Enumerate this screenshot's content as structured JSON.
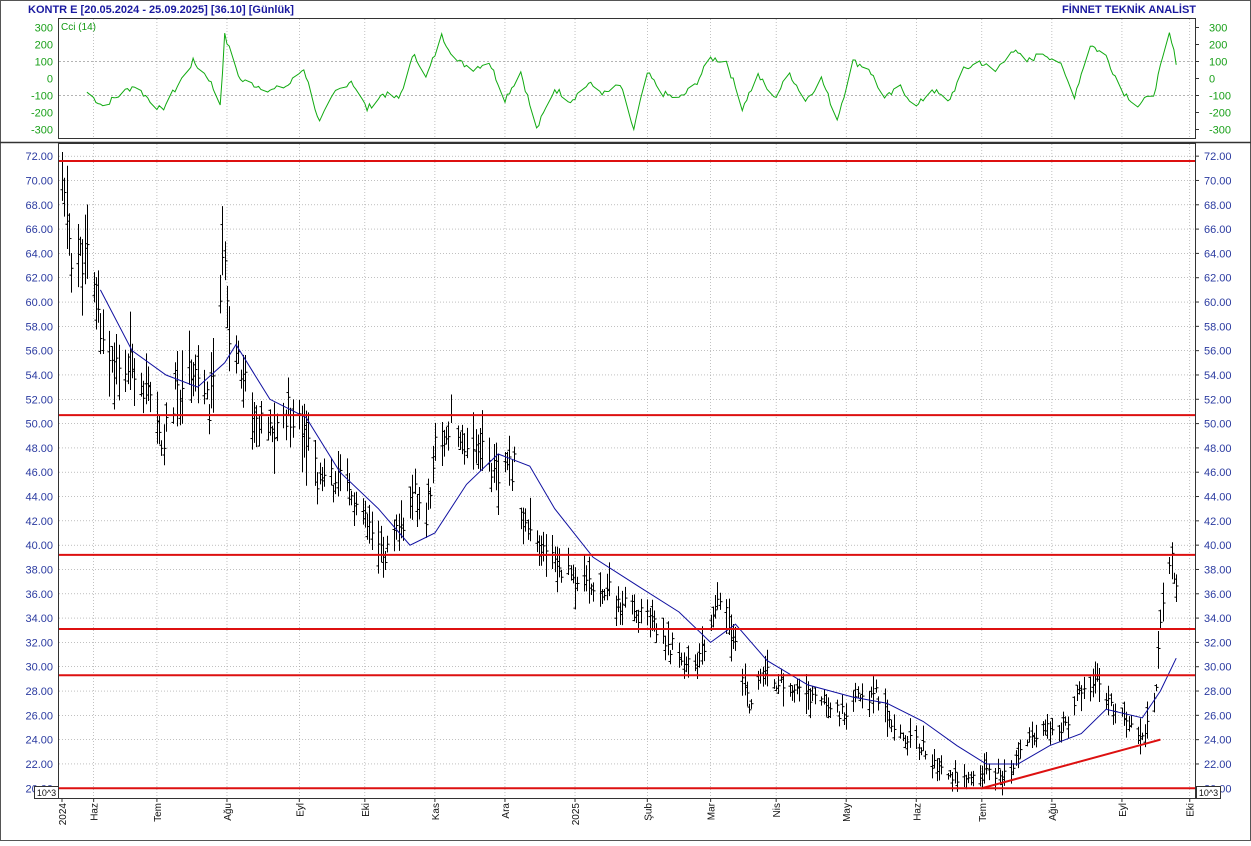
{
  "header": {
    "symbol_info": "KONTR E  [20.05.2024 - 25.09.2025]  [36.10]  [Günlük]",
    "provider": "FİNNET TEKNİK ANALİST"
  },
  "cci_panel": {
    "label": "Cci (14)",
    "ticks": [
      "300",
      "200",
      "100",
      "0",
      "-100",
      "-200",
      "-300"
    ],
    "tick_values": [
      300,
      200,
      100,
      0,
      -100,
      -200,
      -300
    ],
    "ylim": [
      -350,
      350
    ],
    "reference_lines": [
      100,
      -100
    ]
  },
  "price_panel": {
    "ticks": [
      "72.00",
      "70.00",
      "68.00",
      "66.00",
      "64.00",
      "62.00",
      "60.00",
      "58.00",
      "56.00",
      "54.00",
      "52.00",
      "50.00",
      "48.00",
      "46.00",
      "44.00",
      "42.00",
      "40.00",
      "38.00",
      "36.00",
      "34.00",
      "32.00",
      "30.00",
      "28.00",
      "26.00",
      "24.00",
      "22.00",
      "20.00"
    ],
    "tick_values": [
      72,
      70,
      68,
      66,
      64,
      62,
      60,
      58,
      56,
      54,
      52,
      50,
      48,
      46,
      44,
      42,
      40,
      38,
      36,
      34,
      32,
      30,
      28,
      26,
      24,
      22,
      20
    ],
    "ylim": [
      19.2,
      73.0
    ],
    "unit_badge": "10^3"
  },
  "x_axis": {
    "labels": [
      "2024",
      "Haz",
      "Tem",
      "Ağu",
      "Eyl",
      "Eki",
      "Kas",
      "Ara",
      "2025",
      "Şub",
      "Mar",
      "Nis",
      "May",
      "Haz",
      "Tem",
      "Ağu",
      "Eyl",
      "Eki"
    ]
  },
  "colors": {
    "bars": "#000000",
    "moving_average": "#1010a0",
    "levels": "#dd1010",
    "trendline": "#dd1010",
    "cci": "#11aa11",
    "grid": "#9a9a9a"
  },
  "chart_data": {
    "type": "ohlc-bar",
    "title": "KONTR E  [20.05.2024 - 25.09.2025]  [36.10]  [Günlük]",
    "date_range": [
      "2024-05-20",
      "2025-09-25"
    ],
    "last_close": 36.1,
    "price_anchors": [
      [
        "2024-05-20",
        69.5
      ],
      [
        "2024-05-24",
        64.0
      ],
      [
        "2024-05-31",
        63.5
      ],
      [
        "2024-06-07",
        57.0
      ],
      [
        "2024-06-14",
        54.0
      ],
      [
        "2024-06-21",
        55.0
      ],
      [
        "2024-06-28",
        51.5
      ],
      [
        "2024-07-03",
        48.0
      ],
      [
        "2024-07-10",
        53.0
      ],
      [
        "2024-07-17",
        55.0
      ],
      [
        "2024-07-24",
        51.0
      ],
      [
        "2024-07-31",
        64.0
      ],
      [
        "2024-08-02",
        58.0
      ],
      [
        "2024-08-07",
        55.0
      ],
      [
        "2024-08-14",
        50.0
      ],
      [
        "2024-08-21",
        49.0
      ],
      [
        "2024-08-28",
        51.0
      ],
      [
        "2024-09-04",
        50.0
      ],
      [
        "2024-09-11",
        45.0
      ],
      [
        "2024-09-18",
        45.5
      ],
      [
        "2024-09-25",
        44.0
      ],
      [
        "2024-10-02",
        41.5
      ],
      [
        "2024-10-09",
        39.0
      ],
      [
        "2024-10-16",
        41.0
      ],
      [
        "2024-10-23",
        44.0
      ],
      [
        "2024-10-28",
        42.0
      ],
      [
        "2024-11-01",
        48.0
      ],
      [
        "2024-11-08",
        49.5
      ],
      [
        "2024-11-15",
        48.5
      ],
      [
        "2024-11-22",
        48.0
      ],
      [
        "2024-11-29",
        45.5
      ],
      [
        "2024-12-06",
        46.5
      ],
      [
        "2024-12-10",
        42.0
      ],
      [
        "2024-12-16",
        39.5
      ],
      [
        "2024-12-23",
        39.0
      ],
      [
        "2024-12-31",
        37.5
      ],
      [
        "2025-01-08",
        36.5
      ],
      [
        "2025-01-15",
        36.5
      ],
      [
        "2025-01-22",
        35.0
      ],
      [
        "2025-01-29",
        34.5
      ],
      [
        "2025-02-05",
        33.5
      ],
      [
        "2025-02-12",
        32.0
      ],
      [
        "2025-02-19",
        30.5
      ],
      [
        "2025-02-26",
        30.5
      ],
      [
        "2025-03-05",
        35.0
      ],
      [
        "2025-03-10",
        34.5
      ],
      [
        "2025-03-17",
        29.0
      ],
      [
        "2025-03-20",
        27.0
      ],
      [
        "2025-03-27",
        29.5
      ],
      [
        "2025-04-03",
        28.5
      ],
      [
        "2025-04-10",
        28.0
      ],
      [
        "2025-04-17",
        27.5
      ],
      [
        "2025-04-24",
        27.0
      ],
      [
        "2025-05-01",
        26.0
      ],
      [
        "2025-05-08",
        27.5
      ],
      [
        "2025-05-15",
        28.0
      ],
      [
        "2025-05-22",
        25.5
      ],
      [
        "2025-05-29",
        24.0
      ],
      [
        "2025-06-05",
        23.5
      ],
      [
        "2025-06-12",
        21.5
      ],
      [
        "2025-06-19",
        21.0
      ],
      [
        "2025-06-26",
        20.5
      ],
      [
        "2025-07-03",
        21.5
      ],
      [
        "2025-07-10",
        21.0
      ],
      [
        "2025-07-17",
        22.5
      ],
      [
        "2025-07-24",
        24.5
      ],
      [
        "2025-07-31",
        25.5
      ],
      [
        "2025-08-07",
        25.0
      ],
      [
        "2025-08-14",
        28.0
      ],
      [
        "2025-08-21",
        29.0
      ],
      [
        "2025-08-28",
        26.0
      ],
      [
        "2025-09-04",
        25.5
      ],
      [
        "2025-09-11",
        24.5
      ],
      [
        "2025-09-16",
        29.0
      ],
      [
        "2025-09-19",
        35.0
      ],
      [
        "2025-09-23",
        38.5
      ],
      [
        "2025-09-25",
        36.1
      ]
    ],
    "moving_average": [
      [
        "2024-06-06",
        61.0
      ],
      [
        "2024-06-20",
        56.0
      ],
      [
        "2024-07-05",
        54.0
      ],
      [
        "2024-07-19",
        53.0
      ],
      [
        "2024-07-31",
        55.0
      ],
      [
        "2024-08-05",
        56.5
      ],
      [
        "2024-08-20",
        52.0
      ],
      [
        "2024-09-05",
        50.5
      ],
      [
        "2024-09-20",
        46.0
      ],
      [
        "2024-10-07",
        43.0
      ],
      [
        "2024-10-21",
        40.0
      ],
      [
        "2024-11-01",
        41.0
      ],
      [
        "2024-11-15",
        45.0
      ],
      [
        "2024-11-29",
        47.5
      ],
      [
        "2024-12-13",
        46.5
      ],
      [
        "2024-12-24",
        43.0
      ],
      [
        "2025-01-10",
        39.0
      ],
      [
        "2025-01-31",
        36.5
      ],
      [
        "2025-02-17",
        34.5
      ],
      [
        "2025-03-03",
        32.0
      ],
      [
        "2025-03-14",
        33.5
      ],
      [
        "2025-03-28",
        30.5
      ],
      [
        "2025-04-15",
        28.5
      ],
      [
        "2025-05-05",
        27.5
      ],
      [
        "2025-05-20",
        27.0
      ],
      [
        "2025-06-05",
        25.5
      ],
      [
        "2025-06-20",
        23.5
      ],
      [
        "2025-07-03",
        22.0
      ],
      [
        "2025-07-17",
        22.0
      ],
      [
        "2025-07-31",
        23.5
      ],
      [
        "2025-08-14",
        24.5
      ],
      [
        "2025-08-25",
        26.5
      ],
      [
        "2025-09-10",
        25.8
      ],
      [
        "2025-09-18",
        28.0
      ],
      [
        "2025-09-25",
        30.7
      ]
    ],
    "horizontal_levels": [
      71.6,
      50.7,
      39.2,
      33.1,
      29.3,
      20.0
    ],
    "trendline": [
      [
        "2025-07-01",
        20.0
      ],
      [
        "2025-09-18",
        24.0
      ]
    ],
    "cci_anchors": [
      [
        "2024-05-31",
        -80
      ],
      [
        "2024-06-07",
        -160
      ],
      [
        "2024-06-21",
        -40
      ],
      [
        "2024-07-03",
        -190
      ],
      [
        "2024-07-17",
        100
      ],
      [
        "2024-07-24",
        0
      ],
      [
        "2024-07-29",
        -150
      ],
      [
        "2024-07-31",
        250
      ],
      [
        "2024-08-07",
        -10
      ],
      [
        "2024-08-21",
        -70
      ],
      [
        "2024-08-28",
        -40
      ],
      [
        "2024-09-04",
        60
      ],
      [
        "2024-09-11",
        -260
      ],
      [
        "2024-09-18",
        -80
      ],
      [
        "2024-09-25",
        -10
      ],
      [
        "2024-10-02",
        -180
      ],
      [
        "2024-10-09",
        -90
      ],
      [
        "2024-10-16",
        -120
      ],
      [
        "2024-10-23",
        150
      ],
      [
        "2024-10-28",
        0
      ],
      [
        "2024-11-04",
        250
      ],
      [
        "2024-11-11",
        100
      ],
      [
        "2024-11-18",
        60
      ],
      [
        "2024-11-25",
        100
      ],
      [
        "2024-12-02",
        -120
      ],
      [
        "2024-12-09",
        40
      ],
      [
        "2024-12-16",
        -300
      ],
      [
        "2024-12-24",
        -60
      ],
      [
        "2024-12-31",
        -130
      ],
      [
        "2025-01-08",
        -30
      ],
      [
        "2025-01-15",
        -90
      ],
      [
        "2025-01-22",
        -40
      ],
      [
        "2025-01-28",
        -300
      ],
      [
        "2025-02-03",
        30
      ],
      [
        "2025-02-10",
        -90
      ],
      [
        "2025-02-17",
        -120
      ],
      [
        "2025-02-24",
        -40
      ],
      [
        "2025-03-03",
        120
      ],
      [
        "2025-03-10",
        100
      ],
      [
        "2025-03-17",
        -170
      ],
      [
        "2025-03-24",
        20
      ],
      [
        "2025-03-31",
        -120
      ],
      [
        "2025-04-07",
        30
      ],
      [
        "2025-04-14",
        -130
      ],
      [
        "2025-04-21",
        0
      ],
      [
        "2025-04-28",
        -240
      ],
      [
        "2025-05-05",
        100
      ],
      [
        "2025-05-12",
        60
      ],
      [
        "2025-05-19",
        -120
      ],
      [
        "2025-05-26",
        -50
      ],
      [
        "2025-06-02",
        -170
      ],
      [
        "2025-06-09",
        -60
      ],
      [
        "2025-06-16",
        -140
      ],
      [
        "2025-06-23",
        50
      ],
      [
        "2025-06-30",
        100
      ],
      [
        "2025-07-07",
        40
      ],
      [
        "2025-07-14",
        170
      ],
      [
        "2025-07-21",
        100
      ],
      [
        "2025-07-28",
        150
      ],
      [
        "2025-08-04",
        100
      ],
      [
        "2025-08-11",
        -100
      ],
      [
        "2025-08-18",
        200
      ],
      [
        "2025-08-25",
        130
      ],
      [
        "2025-09-01",
        -70
      ],
      [
        "2025-09-08",
        -160
      ],
      [
        "2025-09-15",
        -90
      ],
      [
        "2025-09-22",
        260
      ],
      [
        "2025-09-25",
        100
      ]
    ]
  }
}
